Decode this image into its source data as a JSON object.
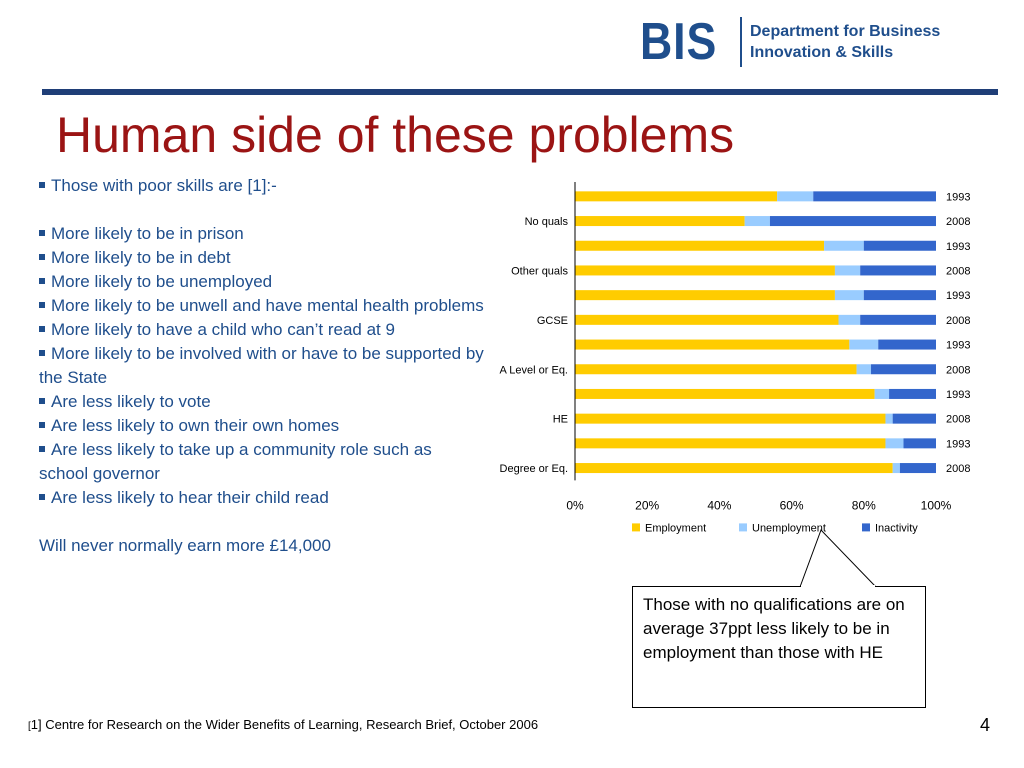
{
  "logo": {
    "mark": "BIS",
    "line1": "Department for Business",
    "line2": "Innovation & Skills"
  },
  "title": "Human side of these problems",
  "bullets": [
    "Those with poor skills are [1]:-",
    "",
    "More likely to be in prison",
    "More likely to be in debt",
    "More likely to be unemployed",
    "More likely to be unwell and have mental health problems",
    "More likely to have a child who can’t read at 9",
    "More likely to be involved with or have to be supported by the State",
    "Are less likely to vote",
    "Are less likely to own their own homes",
    "Are less likely to take up a community role such as school governor",
    "Are less likely to hear their child read"
  ],
  "closing": "Will never normally earn more £14,000",
  "callout": "Those with no qualifications are on average 37ppt less likely to be in employment than those with HE",
  "footnote": {
    "bracket_open": "[",
    "text": "1] Centre for Research on the Wider Benefits of Learning, Research Brief, October 2006"
  },
  "page_number": "4",
  "colors": {
    "employment": "#ffcc00",
    "unemployment": "#99ccff",
    "inactivity": "#3366cc",
    "title": "#9b1414",
    "body_text": "#1f4e8c"
  },
  "chart_data": {
    "type": "bar",
    "orientation": "horizontal",
    "stacked": "percent",
    "categories": [
      "No quals",
      "Other quals",
      "GCSE",
      "A Level or Eq.",
      "HE",
      "Degree or Eq."
    ],
    "years": [
      "1993",
      "2008"
    ],
    "series": [
      {
        "name": "Employment",
        "values": [
          [
            56,
            47
          ],
          [
            69,
            72
          ],
          [
            72,
            73
          ],
          [
            76,
            78
          ],
          [
            83,
            86
          ],
          [
            86,
            88
          ]
        ]
      },
      {
        "name": "Unemployment",
        "values": [
          [
            10,
            7
          ],
          [
            11,
            7
          ],
          [
            8,
            6
          ],
          [
            8,
            4
          ],
          [
            4,
            2
          ],
          [
            5,
            2
          ]
        ]
      },
      {
        "name": "Inactivity",
        "values": [
          [
            34,
            46
          ],
          [
            20,
            21
          ],
          [
            20,
            21
          ],
          [
            16,
            18
          ],
          [
            13,
            12
          ],
          [
            9,
            10
          ]
        ]
      }
    ],
    "x_ticks": [
      "0%",
      "20%",
      "40%",
      "60%",
      "80%",
      "100%"
    ],
    "xlim": [
      0,
      100
    ],
    "legend": "bottom"
  }
}
